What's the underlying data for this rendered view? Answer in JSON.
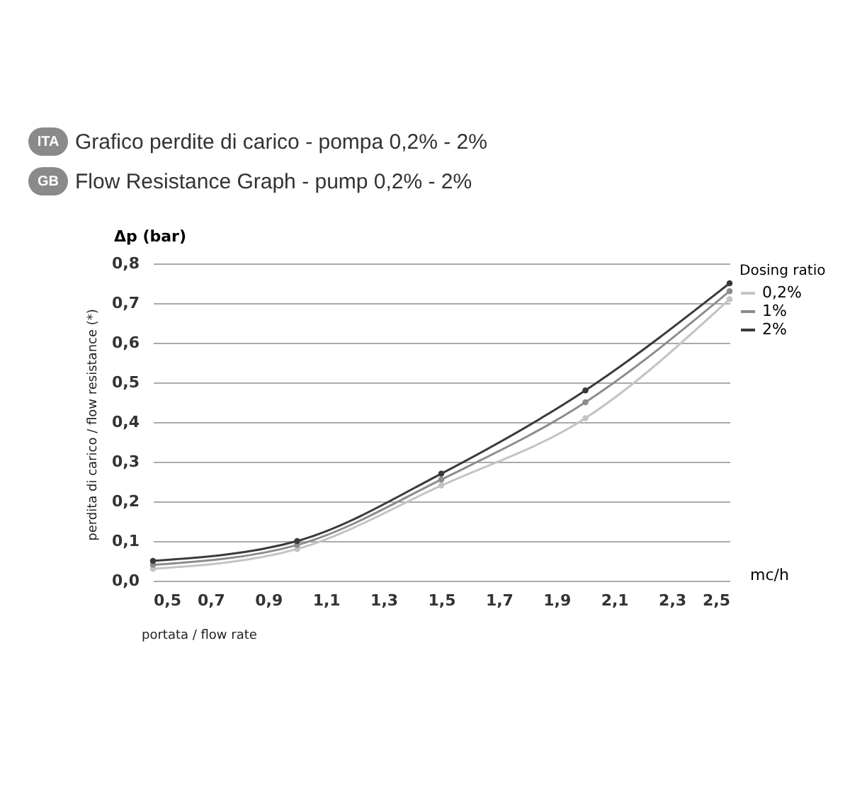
{
  "chart_data": {
    "type": "line",
    "title": "Grafico perdite di carico - pompa 0,2% - 2%",
    "subtitle": "Flow Resistance Graph - pump 0,2% - 2%",
    "xlabel": "mc/h",
    "ylabel": "Δp (bar)",
    "legend_title": "Dosing ratio",
    "annotations": [
      "ITA",
      "GB",
      "perdita di carico / flow resistance (*)",
      "portata / flow rate"
    ],
    "x": [
      0.5,
      1.0,
      1.5,
      2.0,
      2.5
    ],
    "series": [
      {
        "name": "0,2%",
        "color": "#c4c4c4",
        "values": [
          0.03,
          0.08,
          0.24,
          0.41,
          0.71
        ]
      },
      {
        "name": "1%",
        "color": "#8c8c8c",
        "values": [
          0.04,
          0.09,
          0.255,
          0.45,
          0.73
        ]
      },
      {
        "name": "2%",
        "color": "#3a3a3a",
        "values": [
          0.05,
          0.1,
          0.27,
          0.48,
          0.75
        ]
      }
    ],
    "xlim": [
      0.5,
      2.5
    ],
    "xticks": [
      {
        "value": 0.5,
        "label": "0,5"
      },
      {
        "value": 0.7,
        "label": "0,7"
      },
      {
        "value": 0.9,
        "label": "0,9"
      },
      {
        "value": 1.1,
        "label": "1,1"
      },
      {
        "value": 1.3,
        "label": "1,3"
      },
      {
        "value": 1.5,
        "label": "1,5"
      },
      {
        "value": 1.7,
        "label": "1,7"
      },
      {
        "value": 1.9,
        "label": "1,9"
      },
      {
        "value": 2.1,
        "label": "2,1"
      },
      {
        "value": 2.3,
        "label": "2,3"
      },
      {
        "value": 2.5,
        "label": "2,5"
      }
    ],
    "ylim": [
      0,
      0.8
    ],
    "yticks": [
      {
        "value": 0,
        "label": "0,0"
      },
      {
        "value": 0.1,
        "label": "0,1"
      },
      {
        "value": 0.2,
        "label": "0,2"
      },
      {
        "value": 0.3,
        "label": "0,3"
      },
      {
        "value": 0.4,
        "label": "0,4"
      },
      {
        "value": 0.5,
        "label": "0,5"
      },
      {
        "value": 0.6,
        "label": "0,6"
      },
      {
        "value": 0.7,
        "label": "0,7"
      },
      {
        "value": 0.8,
        "label": "0,8"
      }
    ],
    "grid": "y",
    "legend": "right",
    "marker": "circle",
    "line_style": "solid"
  }
}
